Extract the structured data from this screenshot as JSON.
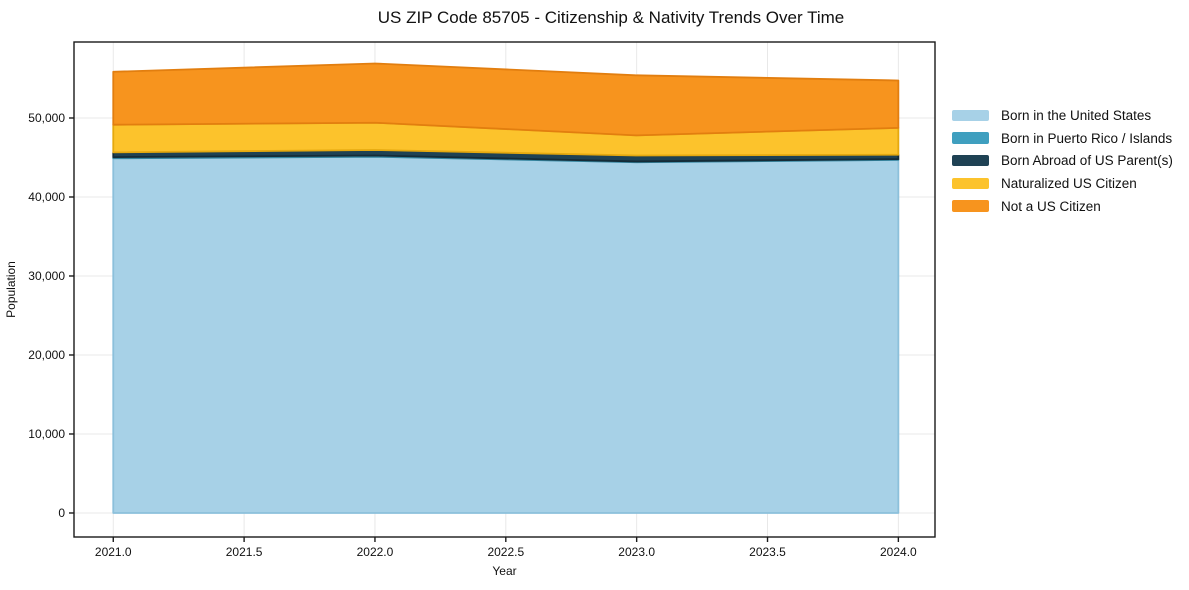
{
  "title": "US ZIP Code 85705 - Citizenship & Nativity Trends Over Time",
  "chart_data": {
    "type": "area",
    "stacked": true,
    "x": [
      2021,
      2022,
      2023,
      2024
    ],
    "series": [
      {
        "name": "Born in the United States",
        "values": [
          44900,
          45100,
          44400,
          44700
        ],
        "color": "#a7d1e7",
        "edge_color": "#8cc0db"
      },
      {
        "name": "Born in Puerto Rico / Islands",
        "values": [
          150,
          150,
          100,
          100
        ],
        "color": "#3f9fbf",
        "edge_color": "#35859f"
      },
      {
        "name": "Born Abroad of US Parent(s)",
        "values": [
          600,
          700,
          750,
          550
        ],
        "color": "#1f4254",
        "edge_color": "#142b37"
      },
      {
        "name": "Naturalized US Citizen",
        "values": [
          3500,
          3450,
          2550,
          3400
        ],
        "color": "#fcc32c",
        "edge_color": "#e5a90f"
      },
      {
        "name": "Not a US Citizen",
        "values": [
          6700,
          7500,
          7600,
          6000
        ],
        "color": "#f7941e",
        "edge_color": "#e27e0f"
      }
    ],
    "totals": [
      55850,
      56900,
      55400,
      54750
    ],
    "xlabel": "Year",
    "ylabel": "Population",
    "xlim": [
      2020.85,
      2024.14
    ],
    "ylim": [
      -3040,
      59620
    ],
    "xticks": {
      "values": [
        2021,
        2021.5,
        2022,
        2022.5,
        2023,
        2023.5,
        2024
      ],
      "labels": [
        "2021.0",
        "2021.5",
        "2022.0",
        "2022.5",
        "2023.0",
        "2023.5",
        "2024.0"
      ]
    },
    "yticks": {
      "values": [
        0,
        10000,
        20000,
        30000,
        40000,
        50000
      ],
      "labels": [
        "0",
        "10,000",
        "20,000",
        "30,000",
        "40,000",
        "50,000"
      ]
    },
    "grid": true,
    "legend_position": "outside-right"
  },
  "colors": {
    "background": "#ffffff",
    "grid": "#e8e8e8",
    "spine": "#1a1a1a",
    "text": "#111111"
  }
}
